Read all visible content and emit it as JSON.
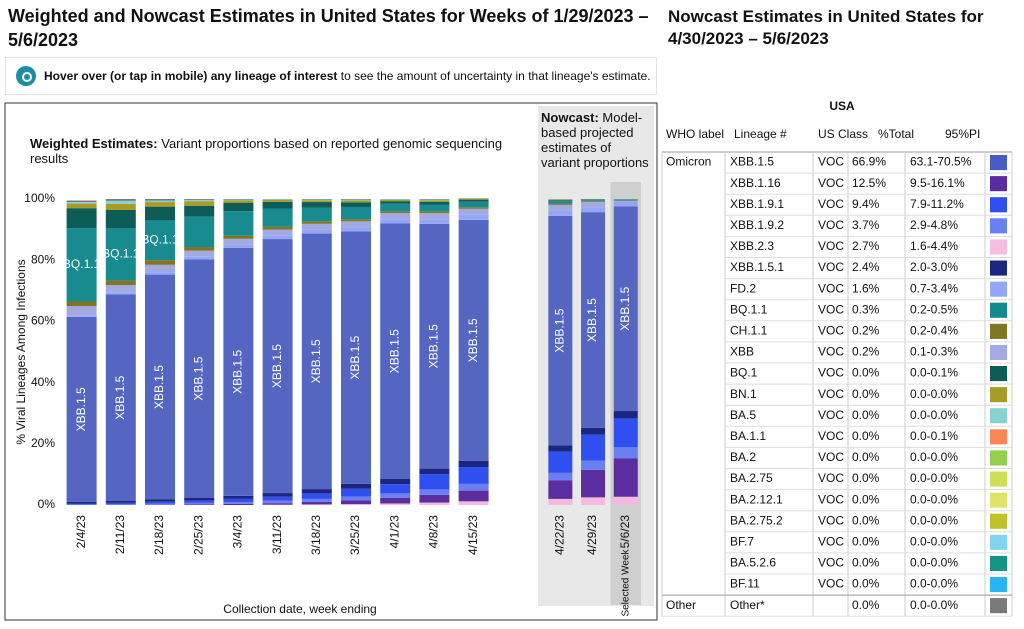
{
  "title": "Weighted and Nowcast Estimates in United States for Weeks of 1/29/2023 – 5/6/2023",
  "hint": {
    "bold": "Hover over (or tap in mobile) any lineage of interest",
    "text": " to see the amount of uncertainty in that lineage's estimate."
  },
  "chart_data": [
    {
      "type": "bar",
      "stacked": true,
      "title": "Weighted Estimates:",
      "subtitle": " Variant proportions based on reported genomic sequencing results",
      "ylabel": "% Viral Lineages Among Infections",
      "xlabel": "Collection date, week ending",
      "ylim": [
        0,
        100
      ],
      "yticks": [
        {
          "value": 0,
          "label": "0%"
        },
        {
          "value": 20,
          "label": "20%"
        },
        {
          "value": 40,
          "label": "40%"
        },
        {
          "value": 60,
          "label": "60%"
        },
        {
          "value": 80,
          "label": "80%"
        },
        {
          "value": 100,
          "label": "100%"
        }
      ],
      "categories": [
        "2/4/23",
        "2/11/23",
        "2/18/23",
        "2/25/23",
        "3/4/23",
        "3/11/23",
        "3/18/23",
        "3/25/23",
        "4/1/23",
        "4/8/23",
        "4/15/23"
      ],
      "series": [
        {
          "name": "XBB.2.3",
          "color": "#f4bade",
          "values": [
            0,
            0,
            0,
            0,
            0,
            0.1,
            0.2,
            0.3,
            0.5,
            0.8,
            1.2
          ]
        },
        {
          "name": "XBB.1.16",
          "color": "#5b2d9f",
          "values": [
            0,
            0,
            0.1,
            0.2,
            0.4,
            0.5,
            0.8,
            1.2,
            1.8,
            2.5,
            3.5
          ]
        },
        {
          "name": "XBB.1.9.2",
          "color": "#6a7ff2",
          "values": [
            0.2,
            0.3,
            0.4,
            0.5,
            0.6,
            0.8,
            1,
            1.3,
            1.5,
            1.8,
            2.2
          ]
        },
        {
          "name": "XBB.1.9.1",
          "color": "#2f4ff0",
          "values": [
            0.3,
            0.4,
            0.6,
            0.8,
            1,
            1.3,
            1.8,
            2.5,
            3,
            5,
            5.5
          ]
        },
        {
          "name": "XBB.1.5.1",
          "color": "#1c2580",
          "values": [
            0.5,
            0.6,
            0.7,
            0.8,
            1,
            1.2,
            1.4,
            1.6,
            1.7,
            1.8,
            2
          ]
        },
        {
          "name": "XBB.1.5",
          "color": "#5466c2",
          "values": [
            60.5,
            67.5,
            73.5,
            78,
            81,
            83,
            83.5,
            82.5,
            83.5,
            80,
            78.8
          ]
        },
        {
          "name": "FD.2",
          "color": "#95a6f7",
          "values": [
            0.5,
            0.6,
            0.7,
            0.8,
            1,
            1.1,
            1.2,
            1.3,
            1.4,
            1.5,
            1.6
          ]
        },
        {
          "name": "XBB",
          "color": "#a3aae3",
          "values": [
            3,
            2.5,
            2.5,
            2,
            2,
            2,
            2,
            2,
            2,
            2,
            2
          ]
        },
        {
          "name": "CH.1.1",
          "color": "#807520",
          "values": [
            1.5,
            1.5,
            1.5,
            1.2,
            1,
            0.9,
            0.8,
            0.7,
            0.6,
            0.6,
            0.5
          ]
        },
        {
          "name": "BQ.1.1",
          "color": "#178b8f",
          "values": [
            24,
            17,
            13,
            10,
            8,
            6,
            4.5,
            4,
            2.5,
            2.2,
            1.8
          ]
        },
        {
          "name": "BQ.1",
          "color": "#0d5c58",
          "values": [
            6.5,
            6,
            4.5,
            3.5,
            2.8,
            2.2,
            1.8,
            1.5,
            0.8,
            0.9,
            0.7
          ]
        },
        {
          "name": "BN.1",
          "color": "#a89c25",
          "values": [
            1.5,
            2,
            1.5,
            1.5,
            0.8,
            0.6,
            0.6,
            0.6,
            0.4,
            0.5,
            0.3
          ]
        },
        {
          "name": "BA.5",
          "color": "#86d3d2",
          "values": [
            0.5,
            1,
            0.5,
            0.4,
            0.2,
            0.2,
            0.2,
            0.3,
            0.2,
            0.2,
            0.1
          ]
        },
        {
          "name": "Other",
          "color": "#7a7a7a",
          "values": [
            0.5,
            0.6,
            0.5,
            0.3,
            0.2,
            0.1,
            0.2,
            0.2,
            0.1,
            0.2,
            0.1
          ]
        }
      ]
    },
    {
      "type": "bar",
      "stacked": true,
      "title": "Nowcast:",
      "subtitle": " Model-based projected estimates of variant proportions",
      "ylim": [
        0,
        100
      ],
      "categories": [
        "4/22/23",
        "4/29/23",
        "5/6/23"
      ],
      "selected": 2,
      "selected_label": "Selected Week",
      "series": [
        {
          "name": "XBB.2.3",
          "color": "#f4bade",
          "values": [
            2,
            2.5,
            2.7
          ]
        },
        {
          "name": "XBB.1.16",
          "color": "#5b2d9f",
          "values": [
            6,
            9,
            12.5
          ]
        },
        {
          "name": "XBB.1.9.2",
          "color": "#6a7ff2",
          "values": [
            2.5,
            3,
            3.7
          ]
        },
        {
          "name": "XBB.1.9.1",
          "color": "#2f4ff0",
          "values": [
            7,
            8.5,
            9.4
          ]
        },
        {
          "name": "XBB.1.5.1",
          "color": "#1c2580",
          "values": [
            2,
            2.2,
            2.4
          ]
        },
        {
          "name": "XBB.1.5",
          "color": "#5466c2",
          "values": [
            75,
            70.5,
            66.9
          ]
        },
        {
          "name": "FD.2",
          "color": "#95a6f7",
          "values": [
            1.6,
            1.6,
            1.6
          ]
        },
        {
          "name": "XBB",
          "color": "#a3aae3",
          "values": [
            2,
            1.8,
            0.2
          ]
        },
        {
          "name": "CH.1.1",
          "color": "#807520",
          "values": [
            0.4,
            0.3,
            0.2
          ]
        },
        {
          "name": "BQ.1.1",
          "color": "#178b8f",
          "values": [
            0.8,
            0.4,
            0.3
          ]
        },
        {
          "name": "BQ.1",
          "color": "#0d5c58",
          "values": [
            0.3,
            0.1,
            0
          ]
        },
        {
          "name": "BN.1",
          "color": "#a89c25",
          "values": [
            0.2,
            0,
            0
          ]
        },
        {
          "name": "BA.5",
          "color": "#86d3d2",
          "values": [
            0.1,
            0,
            0
          ]
        },
        {
          "name": "Other",
          "color": "#7a7a7a",
          "values": [
            0.1,
            0.1,
            0
          ]
        }
      ]
    }
  ],
  "table": {
    "title": "Nowcast Estimates in United States for 4/30/2023 – 5/6/2023",
    "region": "USA",
    "columns": [
      "WHO label",
      "Lineage #",
      "US Class",
      "%Total",
      "95%PI"
    ],
    "rows": [
      {
        "who": "Omicron",
        "lineage": "XBB.1.5",
        "class": "VOC",
        "total": "66.9%",
        "pi": "63.1-70.5%",
        "color": "#4a5bc4"
      },
      {
        "lineage": "XBB.1.16",
        "class": "VOC",
        "total": "12.5%",
        "pi": "9.5-16.1%",
        "color": "#5b2c9f"
      },
      {
        "lineage": "XBB.1.9.1",
        "class": "VOC",
        "total": "9.4%",
        "pi": "7.9-11.2%",
        "color": "#2f4ff0"
      },
      {
        "lineage": "XBB.1.9.2",
        "class": "VOC",
        "total": "3.7%",
        "pi": "2.9-4.8%",
        "color": "#6a7ff2"
      },
      {
        "lineage": "XBB.2.3",
        "class": "VOC",
        "total": "2.7%",
        "pi": "1.6-4.4%",
        "color": "#f5bde0"
      },
      {
        "lineage": "XBB.1.5.1",
        "class": "VOC",
        "total": "2.4%",
        "pi": "2.0-3.0%",
        "color": "#1c2580"
      },
      {
        "lineage": "FD.2",
        "class": "VOC",
        "total": "1.6%",
        "pi": "0.7-3.4%",
        "color": "#94a6f8"
      },
      {
        "lineage": "BQ.1.1",
        "class": "VOC",
        "total": "0.3%",
        "pi": "0.2-0.5%",
        "color": "#158a8e"
      },
      {
        "lineage": "CH.1.1",
        "class": "VOC",
        "total": "0.2%",
        "pi": "0.2-0.4%",
        "color": "#807520"
      },
      {
        "lineage": "XBB",
        "class": "VOC",
        "total": "0.2%",
        "pi": "0.1-0.3%",
        "color": "#a3aae3"
      },
      {
        "lineage": "BQ.1",
        "class": "VOC",
        "total": "0.0%",
        "pi": "0.0-0.1%",
        "color": "#0d5c58"
      },
      {
        "lineage": "BN.1",
        "class": "VOC",
        "total": "0.0%",
        "pi": "0.0-0.0%",
        "color": "#a89c25"
      },
      {
        "lineage": "BA.5",
        "class": "VOC",
        "total": "0.0%",
        "pi": "0.0-0.0%",
        "color": "#86d3d2"
      },
      {
        "lineage": "BA.1.1",
        "class": "VOC",
        "total": "0.0%",
        "pi": "0.0-0.1%",
        "color": "#fb8656"
      },
      {
        "lineage": "BA.2",
        "class": "VOC",
        "total": "0.0%",
        "pi": "0.0-0.0%",
        "color": "#93cf4f"
      },
      {
        "lineage": "BA.2.75",
        "class": "VOC",
        "total": "0.0%",
        "pi": "0.0-0.0%",
        "color": "#cddf57"
      },
      {
        "lineage": "BA.2.12.1",
        "class": "VOC",
        "total": "0.0%",
        "pi": "0.0-0.0%",
        "color": "#dfe36a"
      },
      {
        "lineage": "BA.2.75.2",
        "class": "VOC",
        "total": "0.0%",
        "pi": "0.0-0.0%",
        "color": "#c0c22c"
      },
      {
        "lineage": "BF.7",
        "class": "VOC",
        "total": "0.0%",
        "pi": "0.0-0.0%",
        "color": "#83d3f2"
      },
      {
        "lineage": "BA.5.2.6",
        "class": "VOC",
        "total": "0.0%",
        "pi": "0.0-0.0%",
        "color": "#159486"
      },
      {
        "lineage": "BF.11",
        "class": "VOC",
        "total": "0.0%",
        "pi": "0.0-0.0%",
        "color": "#2ab3f2"
      },
      {
        "who": "Other",
        "lineage": "Other*",
        "total": "0.0%",
        "pi": "0.0-0.0%",
        "color": "#7a7a7a"
      }
    ]
  }
}
